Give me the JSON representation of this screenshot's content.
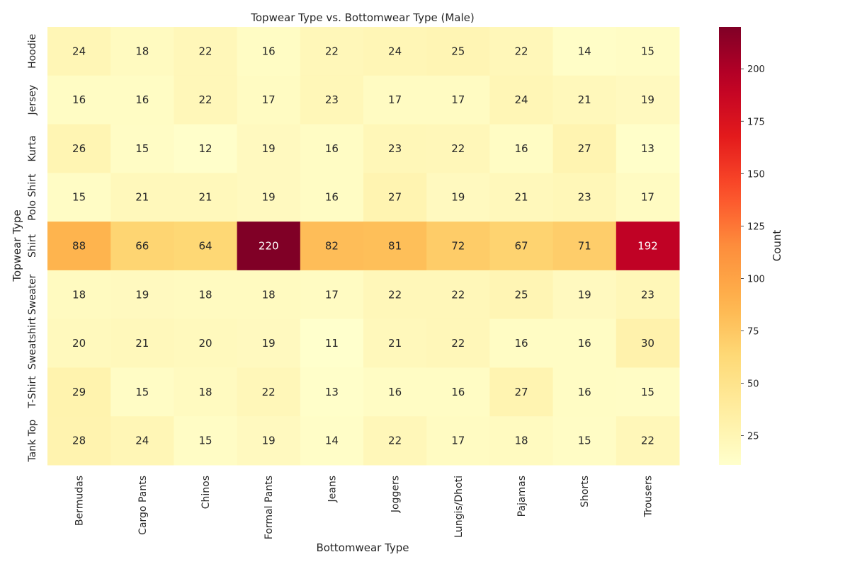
{
  "chart_data": {
    "type": "heatmap",
    "title": "Topwear Type vs. Bottomwear Type (Male)",
    "xlabel": "Bottomwear Type",
    "ylabel": "Topwear Type",
    "colorbar_label": "Count",
    "colormap": "YlOrRd",
    "value_range": [
      11,
      220
    ],
    "colorbar_ticks": [
      25,
      50,
      75,
      100,
      125,
      150,
      175,
      200
    ],
    "x_categories": [
      "Bermudas",
      "Cargo Pants",
      "Chinos",
      "Formal Pants",
      "Jeans",
      "Joggers",
      "Lungis/Dhoti",
      "Pajamas",
      "Shorts",
      "Trousers"
    ],
    "y_categories": [
      "Hoodie",
      "Jersey",
      "Kurta",
      "Polo Shirt",
      "Shirt",
      "Sweater",
      "Sweatshirt",
      "T-Shirt",
      "Tank Top"
    ],
    "values": [
      [
        24,
        18,
        22,
        16,
        22,
        24,
        25,
        22,
        14,
        15
      ],
      [
        16,
        16,
        22,
        17,
        23,
        17,
        17,
        24,
        21,
        19
      ],
      [
        26,
        15,
        12,
        19,
        16,
        23,
        22,
        16,
        27,
        13
      ],
      [
        15,
        21,
        21,
        19,
        16,
        27,
        19,
        21,
        23,
        17
      ],
      [
        88,
        66,
        64,
        220,
        82,
        81,
        72,
        67,
        71,
        192
      ],
      [
        18,
        19,
        18,
        18,
        17,
        22,
        22,
        25,
        19,
        23
      ],
      [
        20,
        21,
        20,
        19,
        11,
        21,
        22,
        16,
        16,
        30
      ],
      [
        29,
        15,
        18,
        22,
        13,
        16,
        16,
        27,
        16,
        15
      ],
      [
        28,
        24,
        15,
        19,
        14,
        22,
        17,
        18,
        15,
        22
      ]
    ]
  }
}
